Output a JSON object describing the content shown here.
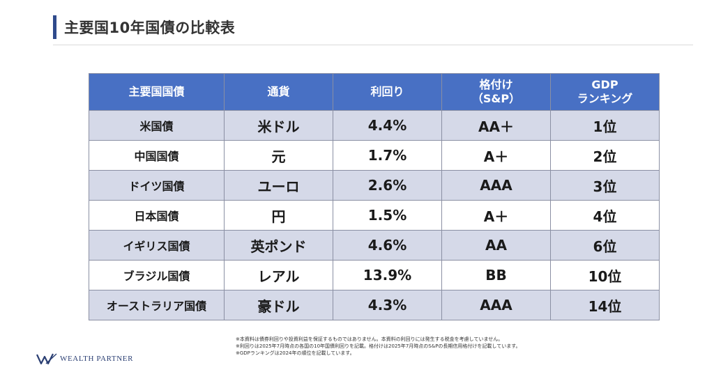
{
  "title": "主要国10年国債の比較表",
  "table": {
    "headers": [
      "主要国国債",
      "通貨",
      "利回り",
      "格付け\n（S&P）",
      "GDP\nランキング"
    ],
    "rows": [
      [
        "米国債",
        "米ドル",
        "4.4%",
        "AA＋",
        "1位"
      ],
      [
        "中国国債",
        "元",
        "1.7%",
        "A＋",
        "2位"
      ],
      [
        "ドイツ国債",
        "ユーロ",
        "2.6%",
        "AAA",
        "3位"
      ],
      [
        "日本国債",
        "円",
        "1.5%",
        "A＋",
        "4位"
      ],
      [
        "イギリス国債",
        "英ポンド",
        "4.6%",
        "AA",
        "6位"
      ],
      [
        "ブラジル国債",
        "レアル",
        "13.9%",
        "BB",
        "10位"
      ],
      [
        "オーストラリア国債",
        "豪ドル",
        "4.3%",
        "AAA",
        "14位"
      ]
    ]
  },
  "notes": [
    "※本資料は債券利回りや投資利益を保証するものではありません。本資料の利回りには発生する税金を考慮していません。",
    "※利回りは2025年7月時点の各国の10年国債利回りを記載。格付けは2025年7月時点のS&Pの長期信用格付けを記載しています。",
    "※GDPランキングは2024年の順位を記載しています。"
  ],
  "logo": {
    "text": "WEALTH PARTNER",
    "icon": "wp-logo-icon"
  },
  "colors": {
    "header_bg": "#4870c4",
    "row_alt": "#d5d9e8",
    "accent": "#2f4a8c"
  }
}
